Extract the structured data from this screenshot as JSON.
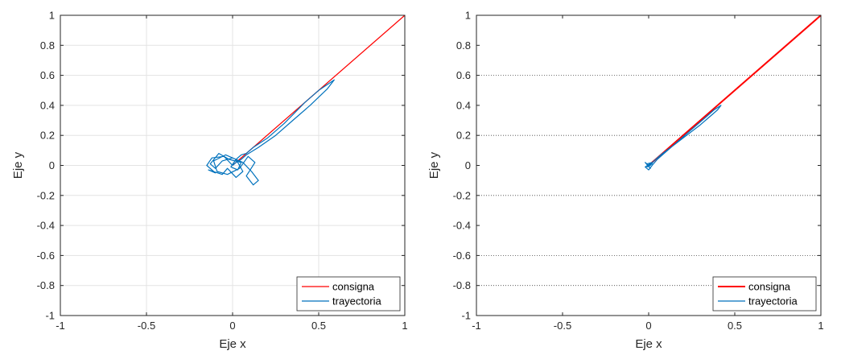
{
  "chart_data": [
    {
      "type": "line",
      "xlabel": "Eje x",
      "ylabel": "Eje y",
      "xlim": [
        -1,
        1
      ],
      "ylim": [
        -1,
        1
      ],
      "xticks": [
        -1,
        -0.5,
        0,
        0.5,
        1
      ],
      "xtick_labels": [
        "-1",
        "-0.5",
        "0",
        "0.5",
        "1"
      ],
      "yticks": [
        -1,
        -0.8,
        -0.6,
        -0.4,
        -0.2,
        0,
        0.2,
        0.4,
        0.6,
        0.8,
        1
      ],
      "ytick_labels": [
        "-1",
        "-0.8",
        "-0.6",
        "-0.4",
        "-0.2",
        "0",
        "0.2",
        "0.4",
        "0.6",
        "0.8",
        "1"
      ],
      "grid": "full",
      "legend": "bottom-right",
      "series": [
        {
          "name": "consigna",
          "color": "#ff0000",
          "x": [
            0,
            1
          ],
          "y": [
            0,
            1
          ]
        },
        {
          "name": "trayectoria",
          "color": "#0072bd",
          "x": [
            0,
            -0.05,
            -0.12,
            -0.15,
            -0.1,
            -0.14,
            -0.06,
            -0.03,
            0.02,
            0.06,
            0.02,
            -0.04,
            -0.11,
            -0.09,
            -0.03,
            0.04,
            0.09,
            0.13,
            0.08,
            0.12,
            0.15,
            0.11,
            0.06,
            0.0,
            -0.06,
            -0.1,
            -0.13,
            -0.08,
            -0.02,
            0.05,
            0.03,
            -0.01,
            0.02,
            0.05,
            0.08,
            0.12,
            0.2,
            0.3,
            0.42,
            0.5,
            0.59,
            0.55,
            0.45,
            0.35,
            0.25,
            0.15,
            0.08,
            0.05,
            0.02,
            0
          ],
          "y": [
            0,
            0.06,
            0.05,
            0.0,
            -0.05,
            -0.03,
            -0.06,
            -0.02,
            -0.08,
            -0.04,
            0.04,
            0.07,
            0.03,
            -0.04,
            -0.06,
            -0.02,
            0.06,
            0.02,
            -0.07,
            -0.13,
            -0.1,
            -0.04,
            0.02,
            0.05,
            0.03,
            -0.02,
            0.01,
            0.08,
            0.04,
            0.02,
            -0.03,
            -0.01,
            0.04,
            0.07,
            0.08,
            0.12,
            0.18,
            0.28,
            0.42,
            0.5,
            0.57,
            0.51,
            0.4,
            0.3,
            0.2,
            0.12,
            0.07,
            0.04,
            0.02,
            0
          ]
        }
      ]
    },
    {
      "type": "line",
      "xlabel": "Eje x",
      "ylabel": "Eje y",
      "xlim": [
        -1,
        1
      ],
      "ylim": [
        -1,
        1
      ],
      "xticks": [
        -1,
        -0.5,
        0,
        0.5,
        1
      ],
      "xtick_labels": [
        "-1",
        "-0.5",
        "0",
        "0.5",
        "1"
      ],
      "yticks": [
        -1,
        -0.8,
        -0.6,
        -0.4,
        -0.2,
        0,
        0.2,
        0.4,
        0.6,
        0.8,
        1
      ],
      "ytick_labels": [
        "-1",
        "-0.8",
        "-0.6",
        "-0.4",
        "-0.2",
        "0",
        "0.2",
        "0.4",
        "0.6",
        "0.8",
        "1"
      ],
      "grid": "dotted horizontal at ±0.2 and ±0.6, ±0.8",
      "grid_y": [
        0.6,
        0.2,
        -0.2,
        -0.6,
        -0.8
      ],
      "legend": "bottom-right",
      "series": [
        {
          "name": "consigna",
          "color": "#ff0000",
          "x": [
            0,
            1
          ],
          "y": [
            0,
            1
          ]
        },
        {
          "name": "trayectoria",
          "color": "#0072bd",
          "x": [
            0,
            -0.02,
            0.01,
            -0.01,
            0.02,
            -0.02,
            0.0,
            0.02,
            0.05,
            0.1,
            0.18,
            0.26,
            0.34,
            0.38,
            0.42,
            0.4,
            0.36,
            0.3,
            0.22,
            0.14,
            0.07,
            0.03,
            0.01,
            -0.01,
            0.02,
            0
          ],
          "y": [
            0,
            0.02,
            -0.02,
            0.01,
            0.02,
            -0.01,
            -0.03,
            0.0,
            0.04,
            0.09,
            0.17,
            0.25,
            0.33,
            0.37,
            0.4,
            0.37,
            0.33,
            0.27,
            0.2,
            0.13,
            0.07,
            0.03,
            0.0,
            -0.01,
            0.01,
            0
          ]
        }
      ]
    }
  ]
}
